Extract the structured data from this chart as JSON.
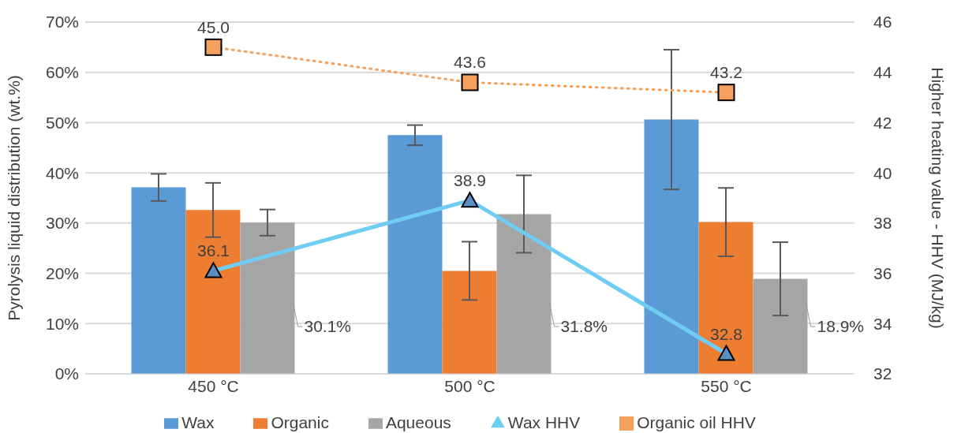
{
  "chart_data": {
    "type": "bar",
    "categories": [
      "450 °C",
      "500 °C",
      "550 °C"
    ],
    "ylabel": "Pyrolysis liquid distribution (wt.%)",
    "y2label": "Higher heating value - HHV (MJ/kg)",
    "ylim": [
      0,
      70
    ],
    "yticks": [
      {
        "value": 0,
        "label": "0%"
      },
      {
        "value": 10,
        "label": "10%"
      },
      {
        "value": 20,
        "label": "20%"
      },
      {
        "value": 30,
        "label": "30%"
      },
      {
        "value": 40,
        "label": "40%"
      },
      {
        "value": 50,
        "label": "50%"
      },
      {
        "value": 60,
        "label": "60%"
      },
      {
        "value": 70,
        "label": "70%"
      }
    ],
    "y2lim": [
      32,
      46
    ],
    "y2ticks": [
      32,
      34,
      36,
      38,
      40,
      42,
      44,
      46
    ],
    "grid": "y",
    "legend": "bottom",
    "series": [
      {
        "name": "Wax",
        "color": "#5b9bd5",
        "values": [
          37.1,
          47.5,
          50.6
        ],
        "errors": [
          2.7,
          2.0,
          13.9
        ]
      },
      {
        "name": "Organic",
        "color": "#ed7d31",
        "values": [
          32.6,
          20.5,
          30.2
        ],
        "errors": [
          5.4,
          5.8,
          6.8
        ]
      },
      {
        "name": "Aqueous",
        "color": "#a5a5a5",
        "values": [
          30.1,
          31.8,
          18.9
        ],
        "errors": [
          2.6,
          7.7,
          7.3
        ],
        "value_labels": [
          "30.1%",
          "31.8%",
          "18.9%"
        ]
      },
      {
        "name": "Wax HHV",
        "type": "line",
        "axis": "y2",
        "color": "#6fcdf3",
        "marker": "triangle",
        "line_style": "solid",
        "values": [
          36.1,
          38.9,
          32.8
        ],
        "value_labels": [
          "36.1",
          "38.9",
          "32.8"
        ]
      },
      {
        "name": "Organic oil HHV",
        "type": "line",
        "axis": "y2",
        "color": "#f4a15d",
        "marker": "square",
        "line_style": "dotted",
        "values": [
          45.0,
          43.6,
          43.2
        ],
        "value_labels": [
          "45.0",
          "43.6",
          "43.2"
        ]
      }
    ]
  }
}
